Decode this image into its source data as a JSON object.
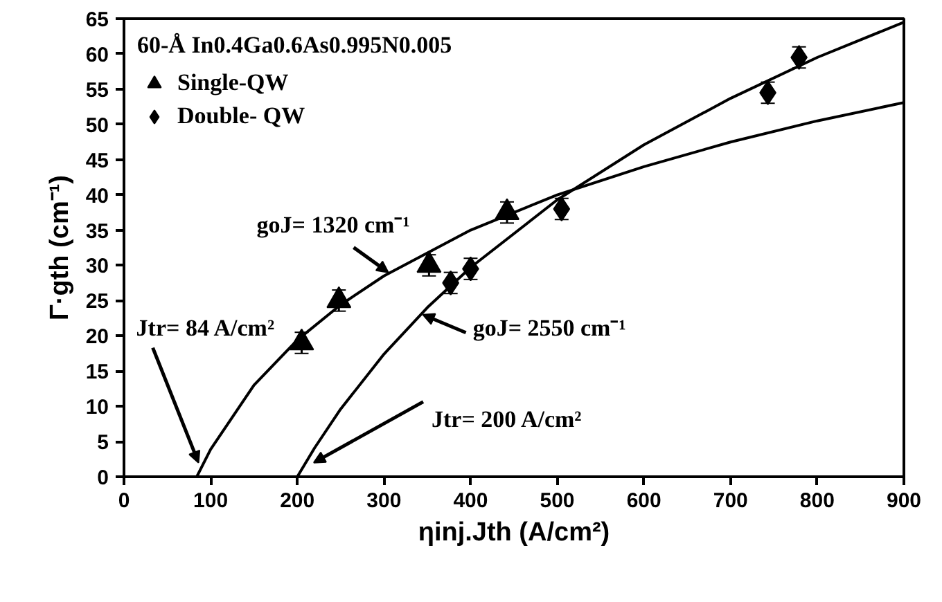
{
  "chart_data": {
    "type": "scatter",
    "xlabel": "ηinj.Jth (A/cm²)",
    "ylabel": "Γ·gth (cm⁻¹)",
    "legend_title": "60-Å In0.4Ga0.6As0.995N0.005",
    "legend": "top left",
    "grid": false,
    "xlim": [
      0,
      900
    ],
    "ylim": [
      0,
      65
    ],
    "xticks": [
      0,
      100,
      200,
      300,
      400,
      500,
      600,
      700,
      800,
      900
    ],
    "yticks": [
      0,
      5,
      10,
      15,
      20,
      25,
      30,
      35,
      40,
      45,
      50,
      55,
      60,
      65
    ],
    "series": [
      {
        "name": "Single-QW",
        "marker": "triangle",
        "color": "#000000",
        "x": [
          205,
          248,
          352,
          442
        ],
        "values": [
          19,
          25,
          30,
          37.5
        ],
        "errors": [
          1.5,
          1.5,
          1.5,
          1.5
        ]
      },
      {
        "name": "Double- QW",
        "marker": "diamond",
        "color": "#000000",
        "x": [
          377,
          400,
          505,
          743,
          779
        ],
        "values": [
          27.5,
          29.5,
          38,
          54.5,
          59.5
        ],
        "errors": [
          1.5,
          1.5,
          1.5,
          1.5,
          1.5
        ]
      },
      {
        "type": "line",
        "color": "#000000",
        "x": [
          84,
          100,
          150,
          200,
          250,
          300,
          400,
          500,
          600,
          700,
          800,
          900
        ],
        "values": [
          0,
          3.9,
          13.0,
          19.4,
          24.4,
          28.5,
          35.0,
          40.0,
          44.0,
          47.5,
          50.5,
          53.1
        ]
      },
      {
        "type": "line",
        "color": "#000000",
        "x": [
          200,
          220,
          250,
          300,
          350,
          400,
          500,
          600,
          700,
          800,
          900
        ],
        "values": [
          0,
          4.1,
          9.6,
          17.4,
          24.0,
          29.7,
          39.3,
          47.1,
          53.7,
          59.5,
          64.5
        ]
      }
    ],
    "annotations": [
      {
        "text": "goJ= 1320 cm⁻¹",
        "x": 305,
        "y": 29
      },
      {
        "text": "goJ= 2550 cm⁻¹",
        "x": 345,
        "y": 23
      },
      {
        "text": "Jtr= 84 A/cm²",
        "x": 86,
        "y": 2
      },
      {
        "text": "Jtr= 200 A/cm²",
        "x": 219,
        "y": 2
      }
    ]
  }
}
